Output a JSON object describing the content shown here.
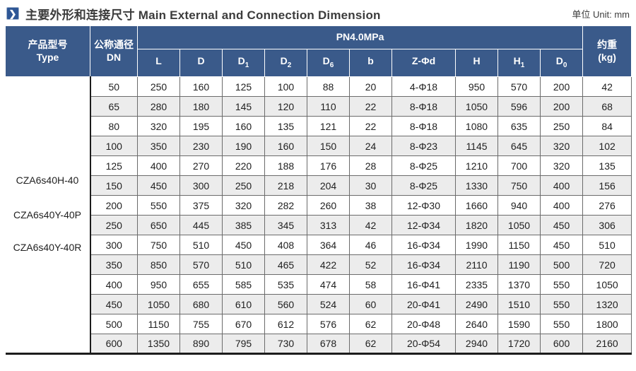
{
  "page": {
    "title_zh": "主要外形和连接尺寸",
    "title_en": "Main External and Connection Dimension",
    "title": "主要外形和连接尺寸 Main External and Connection Dimension",
    "unit_label": "单位 Unit: mm",
    "title_icon": "chevron-right",
    "colors": {
      "header_bg": "#3a5a8a",
      "accent_icon_bg": "#2e5796",
      "stripe_bg": "#ececec",
      "grid": "#6b6b6b",
      "border_heavy": "#1c1c1c"
    }
  },
  "table": {
    "header": {
      "type_zh": "产品型号",
      "type_en": "Type",
      "dn_zh": "公称通径",
      "dn_en": "DN",
      "pressure_group": "PN4.0MPa",
      "weight_zh": "约重",
      "weight_en": "(kg)",
      "dim_columns": [
        {
          "base": "L",
          "sub": ""
        },
        {
          "base": "D",
          "sub": ""
        },
        {
          "base": "D",
          "sub": "1"
        },
        {
          "base": "D",
          "sub": "2"
        },
        {
          "base": "D",
          "sub": "6"
        },
        {
          "base": "b",
          "sub": ""
        },
        {
          "base": "Z-Φd",
          "sub": ""
        },
        {
          "base": "H",
          "sub": ""
        },
        {
          "base": "H",
          "sub": "1"
        },
        {
          "base": "D",
          "sub": "0"
        }
      ]
    },
    "type_models": [
      "CZA6s40H-40",
      "CZA6s40Y-40P",
      "CZA6s40Y-40R"
    ],
    "rows": [
      [
        "50",
        "250",
        "160",
        "125",
        "100",
        "88",
        "20",
        "4-Φ18",
        "950",
        "570",
        "200",
        "42"
      ],
      [
        "65",
        "280",
        "180",
        "145",
        "120",
        "110",
        "22",
        "8-Φ18",
        "1050",
        "596",
        "200",
        "68"
      ],
      [
        "80",
        "320",
        "195",
        "160",
        "135",
        "121",
        "22",
        "8-Φ18",
        "1080",
        "635",
        "250",
        "84"
      ],
      [
        "100",
        "350",
        "230",
        "190",
        "160",
        "150",
        "24",
        "8-Φ23",
        "1145",
        "645",
        "320",
        "102"
      ],
      [
        "125",
        "400",
        "270",
        "220",
        "188",
        "176",
        "28",
        "8-Φ25",
        "1210",
        "700",
        "320",
        "135"
      ],
      [
        "150",
        "450",
        "300",
        "250",
        "218",
        "204",
        "30",
        "8-Φ25",
        "1330",
        "750",
        "400",
        "156"
      ],
      [
        "200",
        "550",
        "375",
        "320",
        "282",
        "260",
        "38",
        "12-Φ30",
        "1660",
        "940",
        "400",
        "276"
      ],
      [
        "250",
        "650",
        "445",
        "385",
        "345",
        "313",
        "42",
        "12-Φ34",
        "1820",
        "1050",
        "450",
        "306"
      ],
      [
        "300",
        "750",
        "510",
        "450",
        "408",
        "364",
        "46",
        "16-Φ34",
        "1990",
        "1150",
        "450",
        "510"
      ],
      [
        "350",
        "850",
        "570",
        "510",
        "465",
        "422",
        "52",
        "16-Φ34",
        "2110",
        "1190",
        "500",
        "720"
      ],
      [
        "400",
        "950",
        "655",
        "585",
        "535",
        "474",
        "58",
        "16-Φ41",
        "2335",
        "1370",
        "550",
        "1050"
      ],
      [
        "450",
        "1050",
        "680",
        "610",
        "560",
        "524",
        "60",
        "20-Φ41",
        "2490",
        "1510",
        "550",
        "1320"
      ],
      [
        "500",
        "1150",
        "755",
        "670",
        "612",
        "576",
        "62",
        "20-Φ48",
        "2640",
        "1590",
        "550",
        "1800"
      ],
      [
        "600",
        "1350",
        "890",
        "795",
        "730",
        "678",
        "62",
        "20-Φ54",
        "2940",
        "1720",
        "600",
        "2160"
      ]
    ]
  }
}
